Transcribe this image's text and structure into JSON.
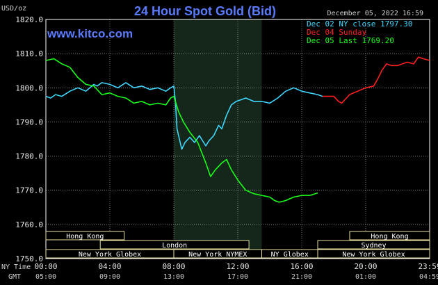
{
  "header": {
    "title": "24 Hour Spot Gold (Bid)",
    "unit": "USD/oz",
    "date": "December 05, 2022 16:59",
    "site": "www.kitco.com"
  },
  "time_rows": {
    "ny_label": "NY Time",
    "gmt_label": "GMT"
  },
  "colors": {
    "background": "#000000",
    "title": "#5a7bff",
    "grid": "#ffffff",
    "dec02": "#3fd8ff",
    "dec04": "#ff2020",
    "dec05": "#19ff19",
    "session_fill": "#000000",
    "session_border": "#e8e0a0",
    "shade": "#15261a"
  },
  "sessions": [
    {
      "label": "Hong Kong",
      "start": 0,
      "end": 4.9
    },
    {
      "label": "London",
      "start": 3.4,
      "end": 12.7
    },
    {
      "label": "New York Globex",
      "start": 0,
      "end": 8.0
    },
    {
      "label": "New York NYMEX",
      "start": 8.0,
      "end": 13.5
    },
    {
      "label": "NY Globex",
      "start": 13.5,
      "end": 17.0
    },
    {
      "label": "Hong Kong",
      "start": 19.0,
      "end": 24
    },
    {
      "label": "Sydney",
      "start": 17.0,
      "end": 24
    },
    {
      "label": "New York Globex",
      "start": 17.0,
      "end": 24
    }
  ],
  "chart_data": {
    "type": "line",
    "title": "24 Hour Spot Gold (Bid)",
    "ylabel": "USD/oz",
    "ylim": [
      1750,
      1820
    ],
    "yticks": [
      "1750.0",
      "1760.0",
      "1770.0",
      "1780.0",
      "1790.0",
      "1800.0",
      "1810.0",
      "1820.0"
    ],
    "xlim": [
      0,
      24
    ],
    "xticks_ny": [
      "00:00",
      "04:00",
      "08:00",
      "12:00",
      "16:00",
      "20:00",
      "23:59"
    ],
    "xticks_gmt": [
      "05:00",
      "09:00",
      "13:00",
      "17:00",
      "21:00",
      "01:00",
      "04:59"
    ],
    "grid": true,
    "legend_position": "top-right",
    "nymex_session_hours": [
      8.0,
      13.5
    ],
    "series": [
      {
        "name": "Dec 02 NY close 1797.30",
        "color": "#3fd8ff",
        "x": [
          0,
          0.3,
          0.6,
          1.0,
          1.5,
          2.0,
          2.5,
          3.0,
          3.2,
          3.5,
          4.0,
          4.5,
          5.0,
          5.5,
          6.0,
          6.5,
          7.0,
          7.5,
          7.8,
          8.0,
          8.1,
          8.2,
          8.35,
          8.5,
          8.7,
          9.0,
          9.3,
          9.6,
          9.8,
          10.0,
          10.2,
          10.5,
          10.8,
          11.0,
          11.3,
          11.6,
          11.9,
          12.2,
          12.5,
          13.0,
          13.5,
          14.0,
          14.5,
          15.0,
          15.5,
          16.0,
          16.5,
          17.0,
          17.3
        ],
        "y": [
          1797.5,
          1797.0,
          1798.0,
          1797.5,
          1799.0,
          1800.0,
          1799.0,
          1801.0,
          1800.5,
          1801.5,
          1801.0,
          1800.0,
          1801.5,
          1800.0,
          1800.5,
          1799.5,
          1800.0,
          1799.0,
          1800.0,
          1800.5,
          1796.0,
          1788.0,
          1785.0,
          1782.0,
          1784.0,
          1785.5,
          1784.0,
          1786.0,
          1784.5,
          1783.0,
          1784.5,
          1786.0,
          1789.0,
          1788.0,
          1792.0,
          1795.0,
          1796.0,
          1796.5,
          1797.0,
          1796.0,
          1796.0,
          1795.5,
          1797.0,
          1799.0,
          1800.0,
          1799.0,
          1798.5,
          1798.0,
          1797.5
        ]
      },
      {
        "name": "Dec 04 Sunday",
        "color": "#ff2020",
        "x": [
          17.3,
          18.0,
          18.3,
          18.5,
          18.8,
          19.0,
          19.5,
          20.0,
          20.5,
          20.8,
          21.0,
          21.3,
          21.6,
          22.0,
          22.3,
          22.6,
          23.0,
          23.3,
          23.6,
          24.0
        ],
        "y": [
          1797.5,
          1797.5,
          1796.0,
          1795.5,
          1797.0,
          1798.0,
          1799.0,
          1800.0,
          1800.5,
          1803.0,
          1805.0,
          1807.0,
          1806.5,
          1806.5,
          1807.0,
          1807.5,
          1807.0,
          1809.0,
          1808.5,
          1808.0
        ]
      },
      {
        "name": "Dec 05 Last 1769.20",
        "color": "#19ff19",
        "x": [
          0,
          0.5,
          1.0,
          1.5,
          2.0,
          2.5,
          3.0,
          3.5,
          4.0,
          4.5,
          5.0,
          5.5,
          6.0,
          6.5,
          7.0,
          7.5,
          7.8,
          8.0,
          8.3,
          8.6,
          9.0,
          9.5,
          10.0,
          10.3,
          10.6,
          11.0,
          11.3,
          11.6,
          12.0,
          12.5,
          13.0,
          13.5,
          14.0,
          14.3,
          14.6,
          15.0,
          15.5,
          16.0,
          16.5,
          17.0
        ],
        "y": [
          1808.0,
          1808.5,
          1807.0,
          1806.0,
          1803.0,
          1801.0,
          1800.5,
          1798.0,
          1798.5,
          1797.5,
          1797.0,
          1795.5,
          1796.0,
          1795.0,
          1795.5,
          1795.0,
          1797.0,
          1797.5,
          1793.0,
          1790.0,
          1787.0,
          1784.0,
          1778.0,
          1774.0,
          1776.0,
          1778.0,
          1779.0,
          1776.0,
          1773.0,
          1770.0,
          1769.0,
          1768.5,
          1768.0,
          1767.0,
          1766.5,
          1767.0,
          1768.0,
          1768.5,
          1768.5,
          1769.2
        ]
      }
    ]
  }
}
